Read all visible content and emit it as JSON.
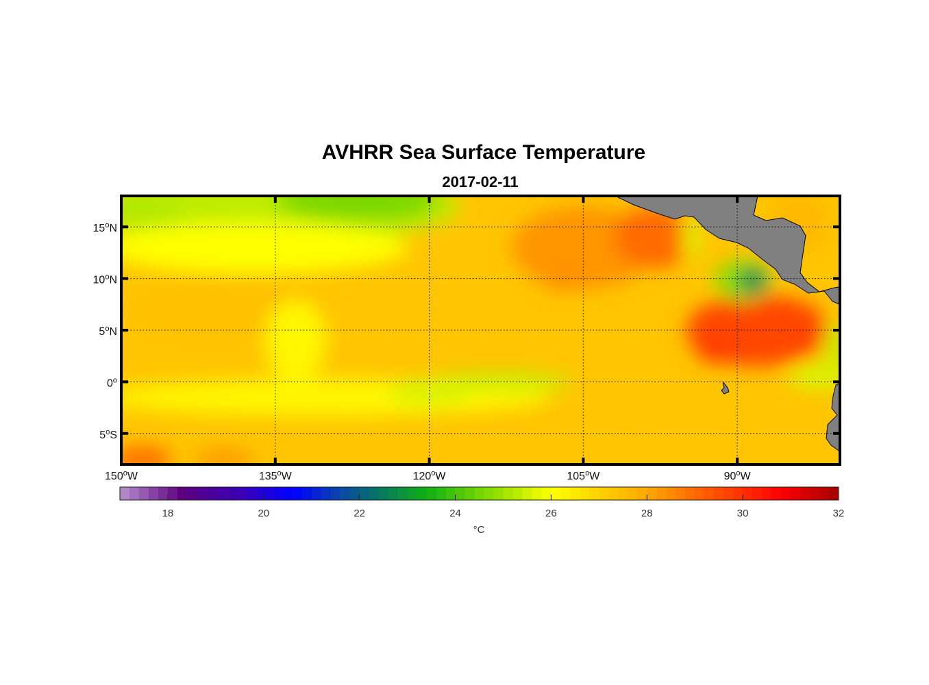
{
  "chart_data": {
    "type": "heatmap",
    "title": "AVHRR Sea Surface Temperature",
    "subtitle": "2017-02-11",
    "projection": "equirectangular",
    "lon_range": [
      -150,
      -80
    ],
    "lat_range": [
      -8,
      18
    ],
    "grid": true,
    "degree_mark": "o",
    "lon_ticks": [
      {
        "value": -150,
        "num": "150",
        "hemi": "W"
      },
      {
        "value": -135,
        "num": "135",
        "hemi": "W"
      },
      {
        "value": -120,
        "num": "120",
        "hemi": "W"
      },
      {
        "value": -105,
        "num": "105",
        "hemi": "W"
      },
      {
        "value": -90,
        "num": "90",
        "hemi": "W"
      }
    ],
    "lat_ticks": [
      {
        "value": 15,
        "num": "15",
        "hemi": "N"
      },
      {
        "value": 10,
        "num": "10",
        "hemi": "N"
      },
      {
        "value": 5,
        "num": "5",
        "hemi": "N"
      },
      {
        "value": 0,
        "num": "0",
        "hemi": ""
      },
      {
        "value": -5,
        "num": "5",
        "hemi": "S"
      }
    ],
    "colorbar": {
      "range": [
        17,
        32
      ],
      "step": 0.2,
      "unit": "°C",
      "ticks": [
        {
          "value": 18,
          "label": "18"
        },
        {
          "value": 20,
          "label": "20"
        },
        {
          "value": 22,
          "label": "22"
        },
        {
          "value": 24,
          "label": "24"
        },
        {
          "value": 26,
          "label": "26"
        },
        {
          "value": 28,
          "label": "28"
        },
        {
          "value": 30,
          "label": "30"
        },
        {
          "value": 32,
          "label": "32"
        }
      ],
      "colormap": [
        [
          17.0,
          "#b892cc"
        ],
        [
          18.3,
          "#5c0080"
        ],
        [
          19.5,
          "#3a00b4"
        ],
        [
          20.6,
          "#0000ff"
        ],
        [
          21.5,
          "#0a40b0"
        ],
        [
          22.3,
          "#08706a"
        ],
        [
          23.4,
          "#0fb014"
        ],
        [
          24.6,
          "#7cd800"
        ],
        [
          26.0,
          "#ffff00"
        ],
        [
          27.0,
          "#ffd200"
        ],
        [
          28.0,
          "#ffa800"
        ],
        [
          29.0,
          "#ff6a00"
        ],
        [
          30.8,
          "#ff0000"
        ],
        [
          32.0,
          "#a00000"
        ]
      ]
    },
    "background_sst": 27.3,
    "sst_features": [
      {
        "lon": -135,
        "lat": 17,
        "rlon": 18,
        "rlat": 3.5,
        "sst": 25.3
      },
      {
        "lon": -127,
        "lat": 17.5,
        "rlon": 8,
        "rlat": 2,
        "sst": 24.6
      },
      {
        "lon": -148,
        "lat": 16.5,
        "rlon": 4,
        "rlat": 2,
        "sst": 25.2
      },
      {
        "lon": -137,
        "lat": 13,
        "rlon": 15,
        "rlat": 2.5,
        "sst": 26.0
      },
      {
        "lon": -140,
        "lat": 7,
        "rlon": 10,
        "rlat": 3,
        "sst": 27.4
      },
      {
        "lon": -133,
        "lat": 4,
        "rlon": 3,
        "rlat": 4,
        "sst": 26.2
      },
      {
        "lon": -130,
        "lat": -1.5,
        "rlon": 22,
        "rlat": 1.8,
        "sst": 26.2
      },
      {
        "lon": -113,
        "lat": 0,
        "rlon": 7,
        "rlat": 0.9,
        "sst": 25.4
      },
      {
        "lon": -120,
        "lat": -1,
        "rlon": 4,
        "rlat": 1.3,
        "sst": 25.6
      },
      {
        "lon": -105,
        "lat": 13,
        "rlon": 7,
        "rlat": 4,
        "sst": 28.3
      },
      {
        "lon": -98,
        "lat": 14,
        "rlon": 4,
        "rlat": 3,
        "sst": 29.0
      },
      {
        "lon": -107,
        "lat": 10,
        "rlon": 2,
        "rlat": 1.2,
        "sst": 28.4
      },
      {
        "lon": -94.5,
        "lat": 14,
        "rlon": 0.8,
        "rlat": 2.3,
        "sst": 25.6
      },
      {
        "lon": -88,
        "lat": 5,
        "rlon": 7,
        "rlat": 3.5,
        "sst": 29.6
      },
      {
        "lon": -92,
        "lat": 3,
        "rlon": 2,
        "rlat": 1.2,
        "sst": 29.8
      },
      {
        "lon": -89.5,
        "lat": 9.8,
        "rlon": 2.8,
        "rlat": 2,
        "sst": 24.8
      },
      {
        "lon": -88.5,
        "lat": 9.8,
        "rlon": 1.4,
        "rlat": 1.2,
        "sst": 22.6
      },
      {
        "lon": -82,
        "lat": 0.5,
        "rlon": 3,
        "rlat": 1.2,
        "sst": 25.6
      },
      {
        "lon": -80.5,
        "lat": 3.5,
        "rlon": 1,
        "rlat": 2.5,
        "sst": 25.4
      },
      {
        "lon": -148,
        "lat": -7.5,
        "rlon": 3,
        "rlat": 1.2,
        "sst": 29.0
      },
      {
        "lon": -140,
        "lat": -7.5,
        "rlon": 3,
        "rlat": 0.8,
        "sst": 28.4
      },
      {
        "lon": -84,
        "lat": 15.5,
        "rlon": 3,
        "rlat": 3,
        "sst": 27.6
      }
    ],
    "land_color": "#808080"
  }
}
